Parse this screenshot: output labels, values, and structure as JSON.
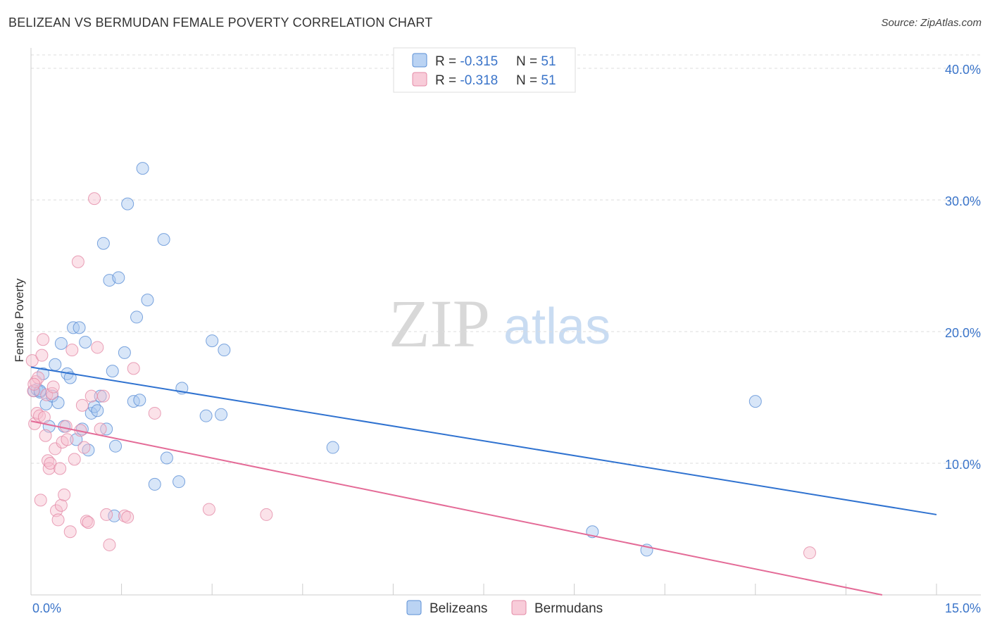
{
  "title": "BELIZEAN VS BERMUDAN FEMALE POVERTY CORRELATION CHART",
  "source": "Source: ZipAtlas.com",
  "watermark": {
    "zip": "ZIP",
    "atlas": "atlas"
  },
  "colors": {
    "blue_fill": "#a9c8f0",
    "blue_stroke": "#5b8fd6",
    "blue_line": "#2f72d0",
    "pink_fill": "#f6bfcf",
    "pink_stroke": "#e48aa6",
    "pink_line": "#e46b97",
    "grid": "#dddddd",
    "tick_text": "#3a74c9"
  },
  "chart_data": {
    "type": "scatter",
    "title": "BELIZEAN VS BERMUDAN FEMALE POVERTY CORRELATION CHART",
    "xlabel": "",
    "ylabel": "Female Poverty",
    "xlim": [
      0,
      15
    ],
    "ylim": [
      0,
      40
    ],
    "x_tick_labels": [
      "0.0%",
      "15.0%"
    ],
    "y_ticks": [
      10,
      20,
      30,
      40
    ],
    "y_tick_labels": [
      "10.0%",
      "20.0%",
      "30.0%",
      "40.0%"
    ],
    "grid": true,
    "legend": {
      "position": "top-center",
      "rows": [
        {
          "r_label": "R = ",
          "r_value": "-0.315",
          "n_label": "N = ",
          "n_value": "51"
        },
        {
          "r_label": "R = ",
          "r_value": "-0.318",
          "n_label": "N = ",
          "n_value": "51"
        }
      ]
    },
    "bottom_legend": [
      "Belizeans",
      "Bermudans"
    ],
    "series": [
      {
        "name": "Belizeans",
        "color": "blue",
        "trend": {
          "x0": 0.0,
          "y0": 17.3,
          "x1": 15.0,
          "y1": 6.1
        },
        "points": [
          [
            0.05,
            15.5
          ],
          [
            0.1,
            15.6
          ],
          [
            0.15,
            15.4
          ],
          [
            0.2,
            16.8
          ],
          [
            0.25,
            14.5
          ],
          [
            0.3,
            12.8
          ],
          [
            0.35,
            15.1
          ],
          [
            0.4,
            17.5
          ],
          [
            0.45,
            14.6
          ],
          [
            0.5,
            19.1
          ],
          [
            0.55,
            12.8
          ],
          [
            0.6,
            16.8
          ],
          [
            0.65,
            16.5
          ],
          [
            0.7,
            20.3
          ],
          [
            0.75,
            11.8
          ],
          [
            0.8,
            20.3
          ],
          [
            0.85,
            12.6
          ],
          [
            0.9,
            19.2
          ],
          [
            0.95,
            11.0
          ],
          [
            1.0,
            13.8
          ],
          [
            1.05,
            14.3
          ],
          [
            1.1,
            14.0
          ],
          [
            1.15,
            15.1
          ],
          [
            1.2,
            26.7
          ],
          [
            1.25,
            12.6
          ],
          [
            1.3,
            23.9
          ],
          [
            1.35,
            17.0
          ],
          [
            1.4,
            11.3
          ],
          [
            1.45,
            24.1
          ],
          [
            1.55,
            18.4
          ],
          [
            1.6,
            29.7
          ],
          [
            1.7,
            14.7
          ],
          [
            1.75,
            21.1
          ],
          [
            1.8,
            14.8
          ],
          [
            1.85,
            32.4
          ],
          [
            1.93,
            22.4
          ],
          [
            2.05,
            8.4
          ],
          [
            2.2,
            27.0
          ],
          [
            2.25,
            10.4
          ],
          [
            2.45,
            8.6
          ],
          [
            2.5,
            15.7
          ],
          [
            2.9,
            13.6
          ],
          [
            3.0,
            19.3
          ],
          [
            3.15,
            13.7
          ],
          [
            3.2,
            18.6
          ],
          [
            5.0,
            11.2
          ],
          [
            1.38,
            6.0
          ],
          [
            0.15,
            15.5
          ],
          [
            9.3,
            4.8
          ],
          [
            10.2,
            3.4
          ],
          [
            12.0,
            14.7
          ]
        ]
      },
      {
        "name": "Bermudans",
        "color": "pink",
        "trend": {
          "x0": 0.0,
          "y0": 13.2,
          "x1": 14.1,
          "y1": 0.0
        },
        "points": [
          [
            0.02,
            17.8
          ],
          [
            0.04,
            15.5
          ],
          [
            0.06,
            13.0
          ],
          [
            0.08,
            16.2
          ],
          [
            0.1,
            13.8
          ],
          [
            0.12,
            16.5
          ],
          [
            0.14,
            13.6
          ],
          [
            0.16,
            7.2
          ],
          [
            0.18,
            18.2
          ],
          [
            0.2,
            19.4
          ],
          [
            0.22,
            13.5
          ],
          [
            0.24,
            12.1
          ],
          [
            0.26,
            15.2
          ],
          [
            0.28,
            10.2
          ],
          [
            0.3,
            9.6
          ],
          [
            0.32,
            10.0
          ],
          [
            0.35,
            15.3
          ],
          [
            0.37,
            15.8
          ],
          [
            0.4,
            11.1
          ],
          [
            0.42,
            6.4
          ],
          [
            0.45,
            5.7
          ],
          [
            0.48,
            9.6
          ],
          [
            0.5,
            6.8
          ],
          [
            0.52,
            11.6
          ],
          [
            0.55,
            7.6
          ],
          [
            0.58,
            12.8
          ],
          [
            0.6,
            11.8
          ],
          [
            0.65,
            4.8
          ],
          [
            0.68,
            18.6
          ],
          [
            0.72,
            10.3
          ],
          [
            0.78,
            25.3
          ],
          [
            0.82,
            12.5
          ],
          [
            0.85,
            14.4
          ],
          [
            0.88,
            11.2
          ],
          [
            0.92,
            5.6
          ],
          [
            0.95,
            5.5
          ],
          [
            1.0,
            15.1
          ],
          [
            1.05,
            30.1
          ],
          [
            1.1,
            18.8
          ],
          [
            1.15,
            12.6
          ],
          [
            1.2,
            15.1
          ],
          [
            1.25,
            6.1
          ],
          [
            1.3,
            3.8
          ],
          [
            1.55,
            6.0
          ],
          [
            1.7,
            17.2
          ],
          [
            2.05,
            13.8
          ],
          [
            2.95,
            6.5
          ],
          [
            3.9,
            6.1
          ],
          [
            12.9,
            3.2
          ],
          [
            0.05,
            16.0
          ],
          [
            1.6,
            5.9
          ]
        ]
      }
    ]
  }
}
